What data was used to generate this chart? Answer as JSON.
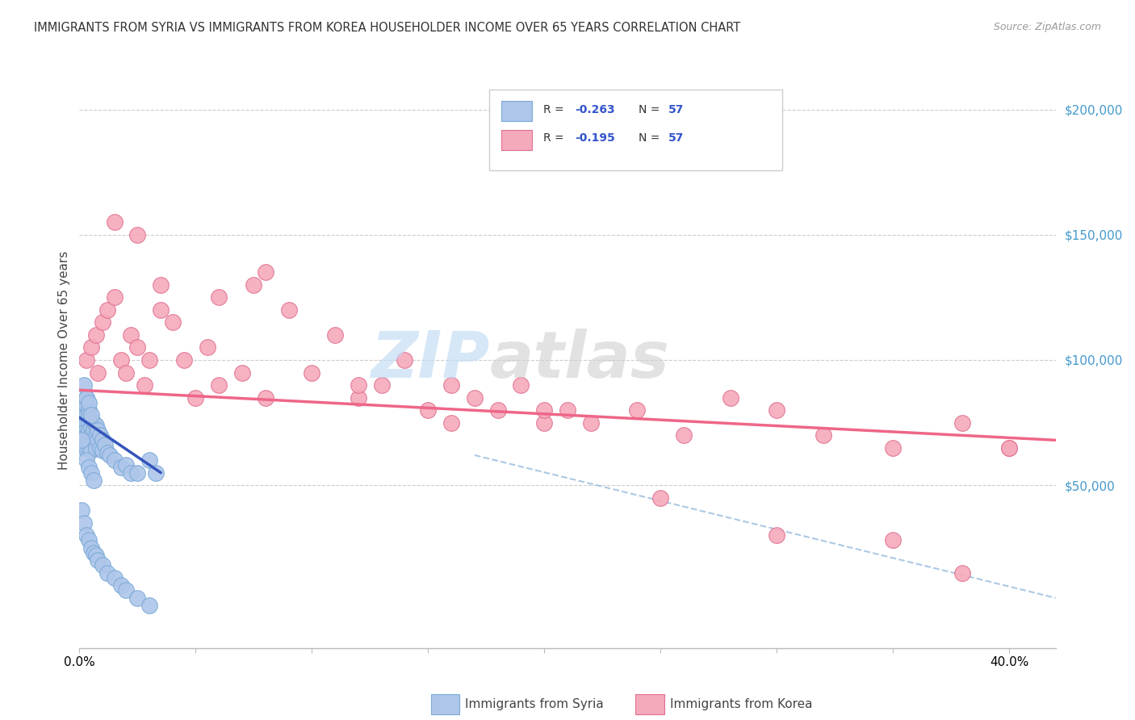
{
  "title": "IMMIGRANTS FROM SYRIA VS IMMIGRANTS FROM KOREA HOUSEHOLDER INCOME OVER 65 YEARS CORRELATION CHART",
  "source": "Source: ZipAtlas.com",
  "ylabel": "Householder Income Over 65 years",
  "right_ytick_vals": [
    200000,
    150000,
    100000,
    50000
  ],
  "legend_bottom_syria": "Immigrants from Syria",
  "legend_bottom_korea": "Immigrants from Korea",
  "watermark_zip": "ZIP",
  "watermark_atlas": "atlas",
  "syria_color": "#aec6ea",
  "syria_edge": "#7aaad8",
  "korea_color": "#f5aabb",
  "korea_edge": "#e07090",
  "syria_line_color": "#3355bb",
  "korea_line_color": "#ee6688",
  "dash_line_color": "#99bbdd",
  "xlim": [
    0.0,
    0.42
  ],
  "ylim": [
    -15000,
    215000
  ],
  "syria_x": [
    0.001,
    0.001,
    0.001,
    0.002,
    0.002,
    0.002,
    0.002,
    0.002,
    0.003,
    0.003,
    0.003,
    0.003,
    0.003,
    0.003,
    0.003,
    0.004,
    0.004,
    0.004,
    0.004,
    0.004,
    0.004,
    0.005,
    0.005,
    0.005,
    0.005,
    0.005,
    0.006,
    0.006,
    0.006,
    0.007,
    0.007,
    0.007,
    0.008,
    0.008,
    0.009,
    0.009,
    0.01,
    0.01,
    0.011,
    0.012,
    0.013,
    0.015,
    0.018,
    0.02,
    0.022,
    0.025,
    0.03,
    0.033,
    0.001,
    0.002,
    0.003,
    0.004,
    0.005,
    0.003,
    0.004,
    0.005,
    0.006
  ],
  "syria_y": [
    75000,
    72000,
    68000,
    80000,
    78000,
    74000,
    70000,
    65000,
    85000,
    82000,
    78000,
    75000,
    72000,
    70000,
    65000,
    80000,
    78000,
    75000,
    72000,
    68000,
    65000,
    76000,
    73000,
    70000,
    67000,
    64000,
    75000,
    72000,
    68000,
    74000,
    70000,
    65000,
    72000,
    68000,
    70000,
    65000,
    68000,
    64000,
    66000,
    63000,
    62000,
    60000,
    57000,
    58000,
    55000,
    55000,
    60000,
    55000,
    68000,
    90000,
    85000,
    83000,
    78000,
    60000,
    57000,
    55000,
    52000
  ],
  "syria_low_x": [
    0.001,
    0.002,
    0.003,
    0.004,
    0.005,
    0.006,
    0.007,
    0.008,
    0.01,
    0.012,
    0.015,
    0.018,
    0.02,
    0.025,
    0.03
  ],
  "syria_low_y": [
    40000,
    35000,
    30000,
    28000,
    25000,
    23000,
    22000,
    20000,
    18000,
    15000,
    13000,
    10000,
    8000,
    5000,
    2000
  ],
  "korea_x": [
    0.003,
    0.005,
    0.007,
    0.008,
    0.01,
    0.012,
    0.015,
    0.018,
    0.02,
    0.022,
    0.025,
    0.028,
    0.03,
    0.035,
    0.04,
    0.045,
    0.05,
    0.055,
    0.06,
    0.07,
    0.075,
    0.08,
    0.09,
    0.1,
    0.11,
    0.12,
    0.13,
    0.14,
    0.15,
    0.16,
    0.17,
    0.18,
    0.19,
    0.2,
    0.21,
    0.22,
    0.24,
    0.26,
    0.28,
    0.3,
    0.32,
    0.35,
    0.38,
    0.4,
    0.015,
    0.025,
    0.035,
    0.06,
    0.08,
    0.12,
    0.16,
    0.2,
    0.25,
    0.3,
    0.35,
    0.38,
    0.4
  ],
  "korea_y": [
    100000,
    105000,
    110000,
    95000,
    115000,
    120000,
    125000,
    100000,
    95000,
    110000,
    105000,
    90000,
    100000,
    120000,
    115000,
    100000,
    85000,
    105000,
    90000,
    95000,
    130000,
    85000,
    120000,
    95000,
    110000,
    85000,
    90000,
    100000,
    80000,
    90000,
    85000,
    80000,
    90000,
    75000,
    80000,
    75000,
    80000,
    70000,
    85000,
    80000,
    70000,
    65000,
    75000,
    65000,
    155000,
    150000,
    130000,
    125000,
    135000,
    90000,
    75000,
    80000,
    45000,
    30000,
    28000,
    15000,
    65000
  ]
}
